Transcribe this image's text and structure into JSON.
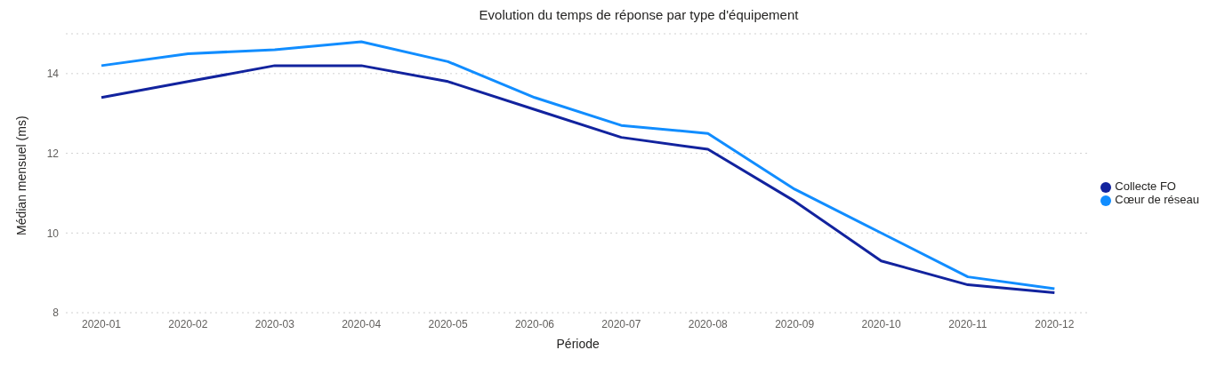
{
  "chart_data": {
    "type": "line",
    "title": "Evolution du temps de réponse par type d'équipement",
    "xlabel": "Période",
    "ylabel": "Médian mensuel (ms)",
    "categories": [
      "2020-01",
      "2020-02",
      "2020-03",
      "2020-04",
      "2020-05",
      "2020-06",
      "2020-07",
      "2020-08",
      "2020-09",
      "2020-10",
      "2020-11",
      "2020-12"
    ],
    "series": [
      {
        "name": "Cœur de réseau",
        "color": "#118dff",
        "values": [
          14.2,
          14.5,
          14.6,
          14.8,
          14.3,
          13.4,
          12.7,
          12.5,
          11.1,
          10.0,
          8.9,
          8.6
        ]
      },
      {
        "name": "Collecte FO",
        "color": "#12239e",
        "values": [
          13.4,
          13.8,
          14.2,
          14.2,
          13.8,
          13.1,
          12.4,
          12.1,
          10.8,
          9.3,
          8.7,
          8.5
        ]
      }
    ],
    "ylim": [
      8,
      15
    ],
    "yticks": [
      8,
      10,
      12,
      14
    ],
    "grid": "y",
    "legend": "right",
    "marker": "none",
    "line_style": "solid"
  }
}
